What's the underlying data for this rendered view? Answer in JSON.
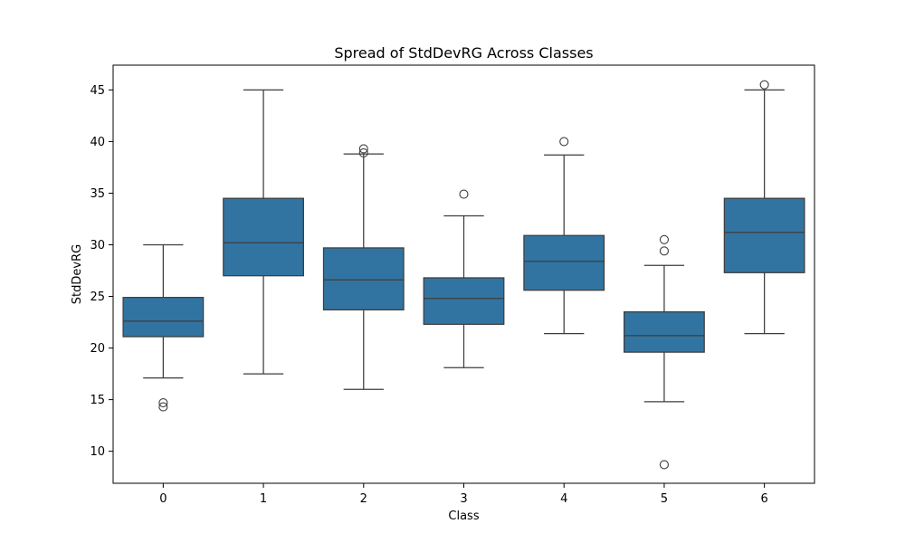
{
  "chart_data": {
    "type": "box",
    "title": "Spread of StdDevRG Across Classes",
    "xlabel": "Class",
    "ylabel": "StdDevRG",
    "categories": [
      "0",
      "1",
      "2",
      "3",
      "4",
      "5",
      "6"
    ],
    "y_ticks": [
      10,
      15,
      20,
      25,
      30,
      35,
      40,
      45
    ],
    "ylim": [
      6.9,
      47.4
    ],
    "grid": false,
    "legend": "none",
    "box_color": "#3274a1",
    "line_color": "#3d3d3d",
    "boxes": [
      {
        "category": "0",
        "whisker_low": 17.1,
        "q1": 21.1,
        "median": 22.6,
        "q3": 24.9,
        "whisker_high": 30.0,
        "outliers": [
          14.3,
          14.7
        ]
      },
      {
        "category": "1",
        "whisker_low": 17.5,
        "q1": 27.0,
        "median": 30.2,
        "q3": 34.5,
        "whisker_high": 45.0,
        "outliers": []
      },
      {
        "category": "2",
        "whisker_low": 16.0,
        "q1": 23.7,
        "median": 26.6,
        "q3": 29.7,
        "whisker_high": 38.8,
        "outliers": [
          38.9,
          39.3
        ]
      },
      {
        "category": "3",
        "whisker_low": 18.1,
        "q1": 22.3,
        "median": 24.8,
        "q3": 26.8,
        "whisker_high": 32.8,
        "outliers": [
          34.9
        ]
      },
      {
        "category": "4",
        "whisker_low": 21.4,
        "q1": 25.6,
        "median": 28.4,
        "q3": 30.9,
        "whisker_high": 38.7,
        "outliers": [
          40.0
        ]
      },
      {
        "category": "5",
        "whisker_low": 14.8,
        "q1": 19.6,
        "median": 21.2,
        "q3": 23.5,
        "whisker_high": 28.0,
        "outliers": [
          8.7,
          29.4,
          30.5
        ]
      },
      {
        "category": "6",
        "whisker_low": 21.4,
        "q1": 27.3,
        "median": 31.2,
        "q3": 34.5,
        "whisker_high": 45.0,
        "outliers": [
          45.5
        ]
      }
    ]
  }
}
